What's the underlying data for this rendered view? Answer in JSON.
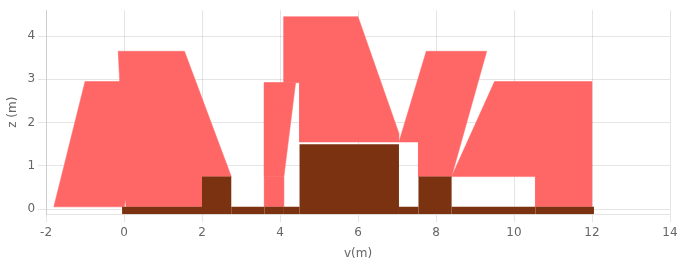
{
  "chart_data": {
    "type": "polygon",
    "xlabel": "v(m)",
    "ylabel": "z (m)",
    "xlim": [
      -2,
      14
    ],
    "ylim": [
      -0.12,
      4.6
    ],
    "xticks": [
      -2,
      0,
      2,
      4,
      6,
      8,
      10,
      12,
      14
    ],
    "yticks": [
      0,
      1,
      2,
      3,
      4
    ],
    "grid": true,
    "series": [
      {
        "color": "#FF6666",
        "polygons": [
          [
            [
              -1.8,
              0.05
            ],
            [
              0.0,
              0.05
            ],
            [
              0.8,
              2.95
            ],
            [
              -1.0,
              2.95
            ]
          ],
          [
            [
              0.05,
              0.05
            ],
            [
              2.0,
              0.05
            ],
            [
              2.0,
              0.75
            ],
            [
              2.75,
              0.75
            ],
            [
              1.55,
              3.65
            ],
            [
              -0.15,
              3.65
            ]
          ],
          [
            [
              3.6,
              0.05
            ],
            [
              4.1,
              0.05
            ],
            [
              4.1,
              0.75
            ],
            [
              3.6,
              0.75
            ],
            [
              4.1,
              2.92
            ],
            [
              3.6,
              2.92
            ]
          ],
          [
            [
              3.6,
              0.75
            ],
            [
              4.1,
              0.75
            ],
            [
              4.4,
              2.92
            ],
            [
              3.6,
              2.92
            ]
          ],
          [
            [
              4.5,
              1.55
            ],
            [
              7.05,
              1.55
            ],
            [
              7.05,
              1.75
            ],
            [
              6.0,
              4.45
            ],
            [
              4.1,
              4.45
            ],
            [
              4.1,
              2.92
            ],
            [
              4.5,
              2.92
            ]
          ],
          [
            [
              7.05,
              1.55
            ],
            [
              7.55,
              1.55
            ],
            [
              7.55,
              0.75
            ],
            [
              8.4,
              0.75
            ],
            [
              9.3,
              3.65
            ],
            [
              7.75,
              3.65
            ]
          ],
          [
            [
              8.4,
              0.75
            ],
            [
              10.55,
              0.75
            ],
            [
              10.55,
              0.05
            ],
            [
              12.0,
              0.05
            ],
            [
              12.0,
              2.95
            ],
            [
              9.5,
              2.95
            ]
          ]
        ]
      },
      {
        "color": "#7B3210",
        "rects": [
          {
            "x": -0.05,
            "y": -0.12,
            "w": 2.1,
            "h": 0.17
          },
          {
            "x": 2.0,
            "y": -0.12,
            "w": 0.75,
            "h": 0.87
          },
          {
            "x": 2.75,
            "y": -0.12,
            "w": 0.85,
            "h": 0.17
          },
          {
            "x": 3.6,
            "y": -0.12,
            "w": 0.5,
            "h": 0.17
          },
          {
            "x": 4.1,
            "y": -0.12,
            "w": 0.4,
            "h": 0.17
          },
          {
            "x": 4.5,
            "y": -0.12,
            "w": 2.55,
            "h": 1.62
          },
          {
            "x": 7.05,
            "y": -0.12,
            "w": 0.5,
            "h": 0.17
          },
          {
            "x": 7.55,
            "y": -0.12,
            "w": 0.85,
            "h": 0.87
          },
          {
            "x": 8.4,
            "y": -0.12,
            "w": 2.15,
            "h": 0.17
          },
          {
            "x": 10.55,
            "y": -0.12,
            "w": 1.5,
            "h": 0.17
          }
        ]
      }
    ]
  }
}
